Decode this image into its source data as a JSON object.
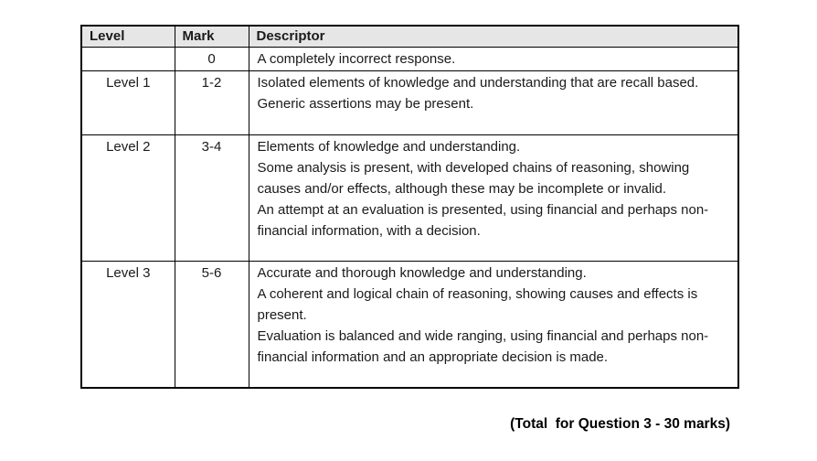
{
  "colors": {
    "header_background": "#e6e6e6",
    "border": "#000000",
    "text": "#1a1a1a"
  },
  "table": {
    "headers": [
      {
        "label": "Level"
      },
      {
        "label": "Mark"
      },
      {
        "label": "Descriptor"
      }
    ],
    "rows": [
      {
        "level": "",
        "mark": "0",
        "descriptor_lines": [
          "A completely incorrect response."
        ]
      },
      {
        "level": "Level 1",
        "mark": "1-2",
        "descriptor_lines": [
          "Isolated elements of knowledge and understanding that are recall based.",
          "Generic assertions may be present."
        ]
      },
      {
        "level": "Level 2",
        "mark": "3-4",
        "descriptor_lines": [
          "Elements of knowledge and understanding.",
          "Some analysis is present, with developed chains of reasoning, showing causes and/or effects, although these may be incomplete or invalid.",
          "An attempt at an evaluation is presented, using financial and perhaps non-financial information, with a decision."
        ]
      },
      {
        "level": "Level 3",
        "mark": "5-6",
        "descriptor_lines": [
          "Accurate and thorough knowledge and understanding.",
          "A coherent and logical chain of reasoning, showing causes and effects is present.",
          "Evaluation is balanced and wide ranging, using financial and perhaps non-financial information and an appropriate decision is made."
        ]
      }
    ]
  },
  "footer": {
    "total_label": "(Total  for Question 3 - 30 marks)"
  }
}
